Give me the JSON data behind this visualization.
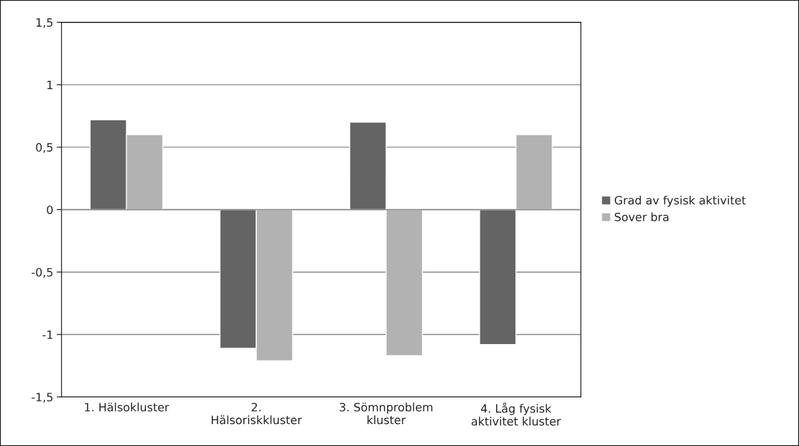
{
  "chart_data": {
    "type": "bar",
    "categories": [
      "1. Hälsokluster",
      "2.\nHälsoriskkluster",
      "3. Sömnproblem\nkluster",
      "4. Låg fysisk\naktivitet kluster"
    ],
    "series": [
      {
        "name": "Grad av fysisk aktivitet",
        "color": "#646464",
        "values": [
          0.72,
          -1.11,
          0.7,
          -1.08
        ]
      },
      {
        "name": "Sover bra",
        "color": "#b2b2b2",
        "values": [
          0.6,
          -1.21,
          -1.17,
          0.6
        ]
      }
    ],
    "ylim": [
      -1.5,
      1.5
    ],
    "yticks": [
      {
        "value": -1.5,
        "label": "-1,5"
      },
      {
        "value": -1,
        "label": "-1"
      },
      {
        "value": -0.5,
        "label": "-0,5"
      },
      0,
      {
        "value": 0.5,
        "label": "0,5"
      },
      1,
      {
        "value": 1.5,
        "label": "1,5"
      }
    ],
    "grid": "y",
    "legend": "right"
  }
}
